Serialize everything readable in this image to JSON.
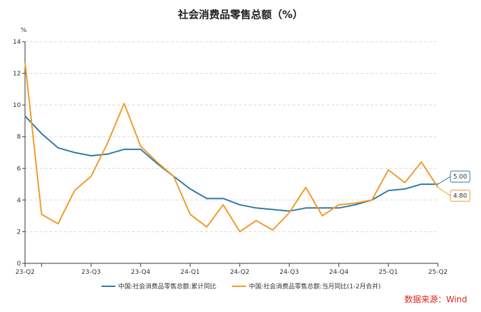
{
  "title": "社会消费品零售总额（%）",
  "source": "数据来源：Wind",
  "chart_data": {
    "type": "line",
    "yunit": "%",
    "ylim": [
      0,
      14
    ],
    "yticks": [
      0,
      2,
      4,
      6,
      8,
      10,
      12,
      14
    ],
    "x_tick_labels": [
      "23-Q2",
      "23-Q3",
      "23-Q4",
      "24-Q1",
      "24-Q2",
      "24-Q3",
      "24-Q4",
      "25-Q1",
      "25-Q2"
    ],
    "x_tick_positions": [
      0,
      4,
      7,
      10,
      13,
      16,
      19,
      22,
      25
    ],
    "grid": "horizontal-dashed",
    "legend_position": "bottom",
    "series": [
      {
        "name": "中国:社会消费品零售总额:累计同比",
        "color": "#2e7ba6",
        "end_label": "5.00",
        "values": [
          {
            "x": 0,
            "y": 9.3
          },
          {
            "x": 1,
            "y": 8.2
          },
          {
            "x": 2,
            "y": 7.3
          },
          {
            "x": 3,
            "y": 7.0
          },
          {
            "x": 4,
            "y": 6.8
          },
          {
            "x": 5,
            "y": 6.9
          },
          {
            "x": 6,
            "y": 7.2
          },
          {
            "x": 7,
            "y": 7.2
          },
          {
            "x": 8,
            "y": 6.3
          },
          {
            "x": 9,
            "y": 5.5
          },
          {
            "x": 10,
            "y": 4.7
          },
          {
            "x": 11,
            "y": 4.1
          },
          {
            "x": 12,
            "y": 4.1
          },
          {
            "x": 13,
            "y": 3.7
          },
          {
            "x": 14,
            "y": 3.5
          },
          {
            "x": 15,
            "y": 3.4
          },
          {
            "x": 16,
            "y": 3.3
          },
          {
            "x": 17,
            "y": 3.5
          },
          {
            "x": 18,
            "y": 3.5
          },
          {
            "x": 19,
            "y": 3.5
          },
          {
            "x": 20,
            "y": 3.7
          },
          {
            "x": 21,
            "y": 4.0
          },
          {
            "x": 22,
            "y": 4.6
          },
          {
            "x": 23,
            "y": 4.7
          },
          {
            "x": 24,
            "y": 5.0
          },
          {
            "x": 25,
            "y": 5.0
          }
        ]
      },
      {
        "name": "中国:社会消费品零售总额:当月同比(1-2月合并)",
        "color": "#f39a2b",
        "end_label": "4.80",
        "values": [
          {
            "x": 0,
            "y": 12.7
          },
          {
            "x": 1,
            "y": 3.1
          },
          {
            "x": 2,
            "y": 2.5
          },
          {
            "x": 3,
            "y": 4.6
          },
          {
            "x": 4,
            "y": 5.5
          },
          {
            "x": 5,
            "y": 7.6
          },
          {
            "x": 6,
            "y": 10.1
          },
          {
            "x": 7,
            "y": 7.4
          },
          {
            "x": 8,
            "y": 6.4
          },
          {
            "x": 9,
            "y": 5.5
          },
          {
            "x": 10,
            "y": 3.1
          },
          {
            "x": 11,
            "y": 2.3
          },
          {
            "x": 12,
            "y": 3.7
          },
          {
            "x": 13,
            "y": 2.0
          },
          {
            "x": 14,
            "y": 2.7
          },
          {
            "x": 15,
            "y": 2.1
          },
          {
            "x": 16,
            "y": 3.2
          },
          {
            "x": 17,
            "y": 4.8
          },
          {
            "x": 18,
            "y": 3.0
          },
          {
            "x": 19,
            "y": 3.7
          },
          {
            "x": 20,
            "y": 3.8
          },
          {
            "x": 21,
            "y": 4.0
          },
          {
            "x": 22,
            "y": 5.9
          },
          {
            "x": 23,
            "y": 5.1
          },
          {
            "x": 24,
            "y": 6.4
          },
          {
            "x": 25,
            "y": 4.8
          }
        ]
      }
    ]
  }
}
